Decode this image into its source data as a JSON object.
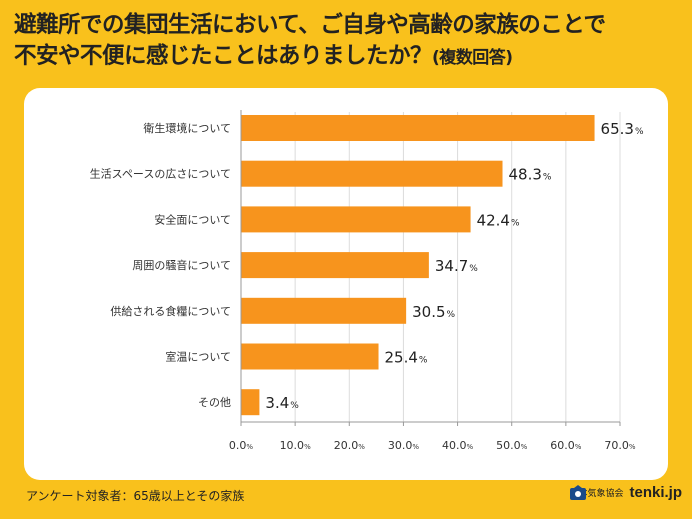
{
  "title": {
    "line1": "避難所での集団生活において、ご自身や高齢の家族のことで",
    "line2_main": "不安や不便に感じたことはありましたか？",
    "line2_paren": "(複数回答)"
  },
  "footer": {
    "note": "アンケート対象者：65歳以上とその家族",
    "org": "日本気象協会",
    "brand": "tenki.jp",
    "brand_icon": "tenki-logo-icon"
  },
  "colors": {
    "bar": "#F7941D",
    "background": "#F9C11C",
    "panel": "#FFFFFF",
    "axis": "#999999"
  },
  "chart_data": {
    "type": "bar",
    "orientation": "horizontal",
    "title": "",
    "xlabel": "",
    "ylabel": "",
    "unit": "%",
    "categories": [
      "衛生環境について",
      "生活スペースの広さについて",
      "安全面について",
      "周囲の騒音について",
      "供給される食糧について",
      "室温について",
      "その他"
    ],
    "values": [
      65.3,
      48.3,
      42.4,
      34.7,
      30.5,
      25.4,
      3.4
    ],
    "value_labels": [
      "65.3",
      "48.3",
      "42.4",
      "34.7",
      "30.5",
      "25.4",
      "3.4"
    ],
    "xlim": [
      0,
      70
    ],
    "ticks": [
      0,
      10,
      20,
      30,
      40,
      50,
      60,
      70
    ],
    "tick_labels": [
      "0.0",
      "10.0",
      "20.0",
      "30.0",
      "40.0",
      "50.0",
      "60.0",
      "70.0"
    ],
    "grid": true
  }
}
